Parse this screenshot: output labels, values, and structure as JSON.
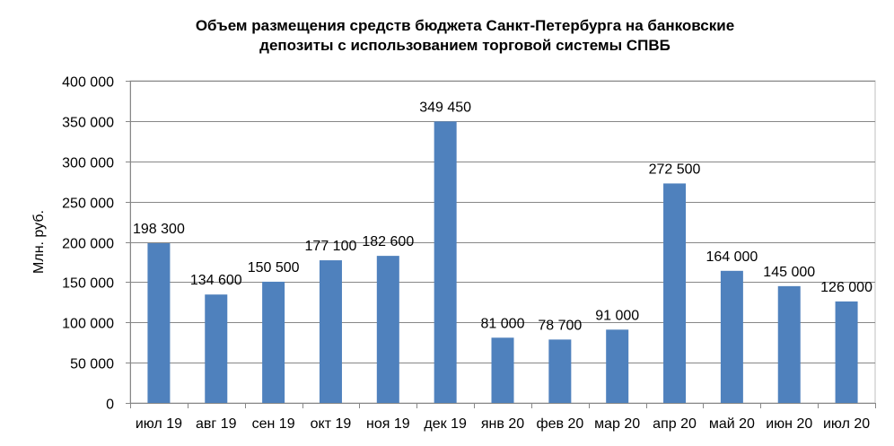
{
  "chart_data": {
    "type": "bar",
    "title_lines": [
      "Объем размещения средств бюджета Санкт-Петербурга на банковские",
      "депозиты с использованием торговой системы СПВБ"
    ],
    "ylabel": "Млн. руб.",
    "xlabel": "",
    "ylim": [
      0,
      400000
    ],
    "yticks": [
      0,
      50000,
      100000,
      150000,
      200000,
      250000,
      300000,
      350000,
      400000
    ],
    "ytick_labels": [
      "0",
      "50 000",
      "100 000",
      "150 000",
      "200 000",
      "250 000",
      "300 000",
      "350 000",
      "400 000"
    ],
    "categories": [
      "июл 19",
      "авг 19",
      "сен 19",
      "окт 19",
      "ноя 19",
      "дек 19",
      "янв 20",
      "фев 20",
      "мар 20",
      "апр 20",
      "май 20",
      "июн 20",
      "июл 20"
    ],
    "values": [
      198300,
      134600,
      150500,
      177100,
      182600,
      349450,
      81000,
      78700,
      91000,
      272500,
      164000,
      145000,
      126000
    ],
    "value_labels": [
      "198 300",
      "134 600",
      "150 500",
      "177 100",
      "182 600",
      "349 450",
      "81 000",
      "78 700",
      "91 000",
      "272 500",
      "164 000",
      "145 000",
      "126 000"
    ],
    "grid": true,
    "legend": "none",
    "bar_color": "#4F81BD"
  }
}
